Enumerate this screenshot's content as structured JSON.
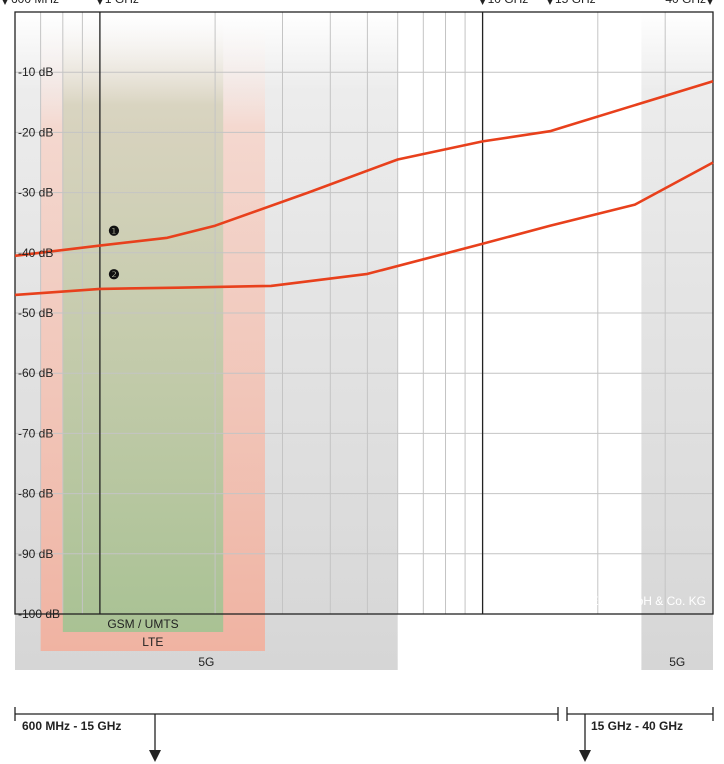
{
  "chart_data": {
    "type": "line",
    "x_scale": "log",
    "xlim_ghz": [
      0.6,
      40
    ],
    "ylim": [
      -100,
      0
    ],
    "y_unit": "dB",
    "y_ticks": [
      -10,
      -20,
      -30,
      -40,
      -50,
      -60,
      -70,
      -80,
      -90,
      -100
    ],
    "y_tick_labels": [
      "-10 dB",
      "-20 dB",
      "-30 dB",
      "-40 dB",
      "-50 dB",
      "-60 dB",
      "-70 dB",
      "-80 dB",
      "-90 dB",
      "-100 dB"
    ],
    "top_labels": [
      {
        "text": "600 MHz",
        "x": 0.6
      },
      {
        "text": "1 GHz",
        "x": 1
      },
      {
        "text": "10 GHz",
        "x": 10
      },
      {
        "text": "15 GHz",
        "x": 15
      },
      {
        "text": "40 GHz",
        "x": 40
      }
    ],
    "markers_ghz": [
      1,
      10
    ],
    "series": [
      {
        "marker": "❶",
        "color": "#e8401c",
        "points": [
          [
            0.6,
            -40.5
          ],
          [
            1,
            -38.8
          ],
          [
            1.5,
            -37.5
          ],
          [
            2,
            -35.5
          ],
          [
            3.5,
            -30
          ],
          [
            6,
            -24.5
          ],
          [
            10,
            -21.5
          ],
          [
            15,
            -19.8
          ],
          [
            40,
            -11.5
          ]
        ]
      },
      {
        "marker": "❷",
        "color": "#e8401c",
        "points": [
          [
            0.6,
            -47
          ],
          [
            1,
            -46
          ],
          [
            1.6,
            -45.8
          ],
          [
            2.8,
            -45.5
          ],
          [
            5,
            -43.5
          ],
          [
            10,
            -38.5
          ],
          [
            15,
            -35.5
          ],
          [
            25,
            -32
          ],
          [
            40,
            -25
          ]
        ]
      }
    ],
    "bands": [
      {
        "label": "5G",
        "range_ghz": [
          0.6,
          6
        ],
        "color": "#d2d2d2"
      },
      {
        "label": "5G",
        "range_ghz": [
          26,
          40
        ],
        "color": "#d2d2d2"
      },
      {
        "label": "LTE",
        "range_ghz": [
          0.7,
          2.7
        ],
        "color": "#f2b9a8"
      },
      {
        "label": "GSM / UMTS",
        "range_ghz": [
          0.8,
          2.1
        ],
        "color": "#a6bf8f"
      }
    ],
    "watermark": "© YSHIELD GmbH & Co. KG",
    "ranges": [
      {
        "label": "600 MHz - 15 GHz",
        "range_ghz": [
          0.6,
          15
        ]
      },
      {
        "label": "15 GHz - 40 GHz",
        "range_ghz": [
          15,
          40
        ]
      }
    ]
  }
}
